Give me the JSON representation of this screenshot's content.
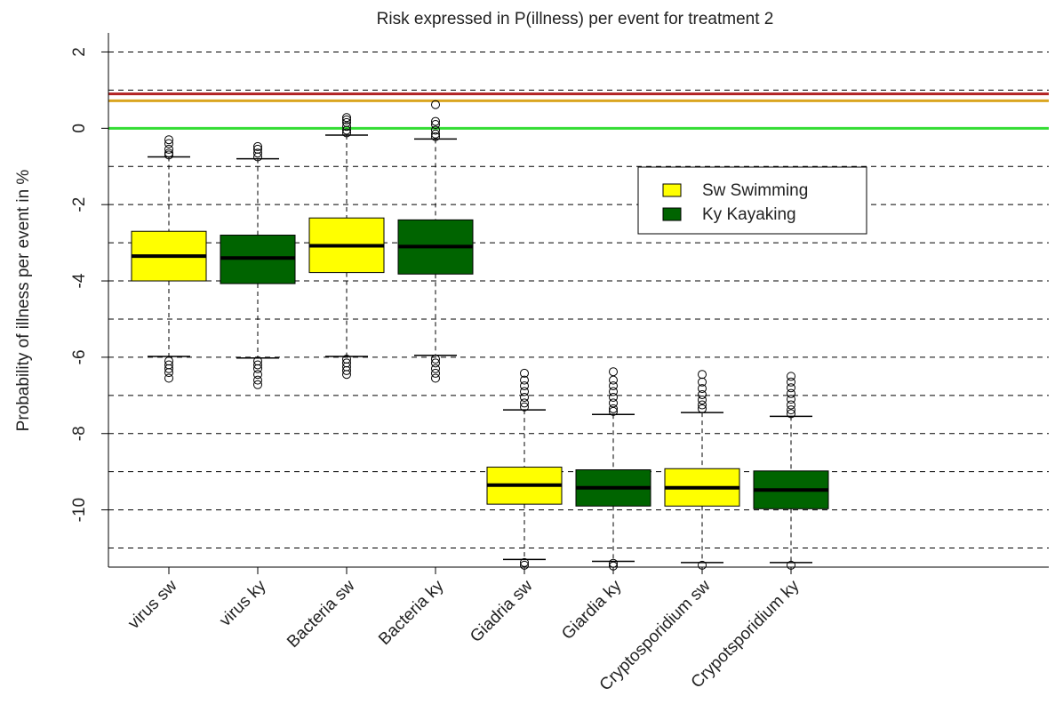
{
  "chart_data": {
    "type": "box",
    "title": "Risk expressed in P(illness) per event for treatment 2",
    "ylabel": "Probability of illness per event in %",
    "xlabel": "",
    "ylim": [
      -11.5,
      2.5
    ],
    "yticks": [
      2,
      0,
      -2,
      -4,
      -6,
      -8,
      -10
    ],
    "grid": "horizontal dashed at every integer",
    "reference_lines": [
      {
        "y": 0.9,
        "color": "#b22222"
      },
      {
        "y": 0.72,
        "color": "#daa520"
      },
      {
        "y": 0.0,
        "color": "#33dd33"
      }
    ],
    "legend": {
      "placement": "center-right",
      "entries": [
        {
          "label": "Sw Swimming",
          "color": "#ffff00"
        },
        {
          "label": "Ky Kayaking",
          "color": "#006400"
        }
      ]
    },
    "categories": [
      "virus sw",
      "virus ky",
      "Bacteria sw",
      "Bacteria ky",
      "Giadria sw",
      "Giardia ky",
      "Cryptosporidium sw",
      "Crypotsporidium ky"
    ],
    "boxes": [
      {
        "category": "virus sw",
        "color": "#ffff00",
        "whisker_high": -0.75,
        "q3": -2.7,
        "median": -3.35,
        "q1": -4.0,
        "whisker_low": -5.98,
        "outliers_high": [
          -0.3,
          -0.4,
          -0.55,
          -0.65,
          -0.7
        ],
        "outliers_low": [
          -6.1,
          -6.2,
          -6.3,
          -6.4,
          -6.55
        ]
      },
      {
        "category": "virus ky",
        "color": "#006400",
        "whisker_high": -0.8,
        "q3": -2.8,
        "median": -3.4,
        "q1": -4.07,
        "whisker_low": -6.02,
        "outliers_high": [
          -0.48,
          -0.55,
          -0.65,
          -0.75
        ],
        "outliers_low": [
          -6.1,
          -6.2,
          -6.3,
          -6.45,
          -6.6,
          -6.72
        ]
      },
      {
        "category": "Bacteria sw",
        "color": "#ffff00",
        "whisker_high": -0.18,
        "q3": -2.35,
        "median": -3.08,
        "q1": -3.78,
        "whisker_low": -5.98,
        "outliers_high": [
          0.28,
          0.22,
          0.15,
          0.05,
          -0.05,
          -0.12
        ],
        "outliers_low": [
          -6.05,
          -6.15,
          -6.25,
          -6.35,
          -6.45
        ]
      },
      {
        "category": "Bacteria ky",
        "color": "#006400",
        "whisker_high": -0.28,
        "q3": -2.4,
        "median": -3.1,
        "q1": -3.82,
        "whisker_low": -5.95,
        "outliers_high": [
          0.62,
          0.18,
          0.1,
          -0.05,
          -0.15,
          -0.22
        ],
        "outliers_low": [
          -6.05,
          -6.15,
          -6.3,
          -6.42,
          -6.55
        ]
      },
      {
        "category": "Giadria sw",
        "color": "#ffff00",
        "whisker_high": -7.38,
        "q3": -8.88,
        "median": -9.35,
        "q1": -9.85,
        "whisker_low": -11.3,
        "outliers_high": [
          -6.42,
          -6.6,
          -6.75,
          -6.9,
          -7.05,
          -7.2,
          -7.3
        ],
        "outliers_low": [
          -11.38,
          -11.45
        ]
      },
      {
        "category": "Giardia ky",
        "color": "#006400",
        "whisker_high": -7.5,
        "q3": -8.95,
        "median": -9.42,
        "q1": -9.9,
        "whisker_low": -11.35,
        "outliers_high": [
          -6.38,
          -6.6,
          -6.75,
          -6.9,
          -7.05,
          -7.2,
          -7.35,
          -7.42
        ],
        "outliers_low": [
          -11.4,
          -11.47
        ]
      },
      {
        "category": "Cryptosporidium sw",
        "color": "#ffff00",
        "whisker_high": -7.45,
        "q3": -8.92,
        "median": -9.42,
        "q1": -9.9,
        "whisker_low": -11.38,
        "outliers_high": [
          -6.45,
          -6.65,
          -6.82,
          -6.98,
          -7.12,
          -7.25,
          -7.35
        ],
        "outliers_low": [
          -11.45
        ]
      },
      {
        "category": "Crypotsporidium ky",
        "color": "#006400",
        "whisker_high": -7.55,
        "q3": -8.98,
        "median": -9.48,
        "q1": -9.97,
        "whisker_low": -11.38,
        "outliers_high": [
          -6.5,
          -6.65,
          -6.8,
          -6.95,
          -7.1,
          -7.25,
          -7.38,
          -7.48
        ],
        "outliers_low": [
          -11.45
        ]
      }
    ]
  }
}
